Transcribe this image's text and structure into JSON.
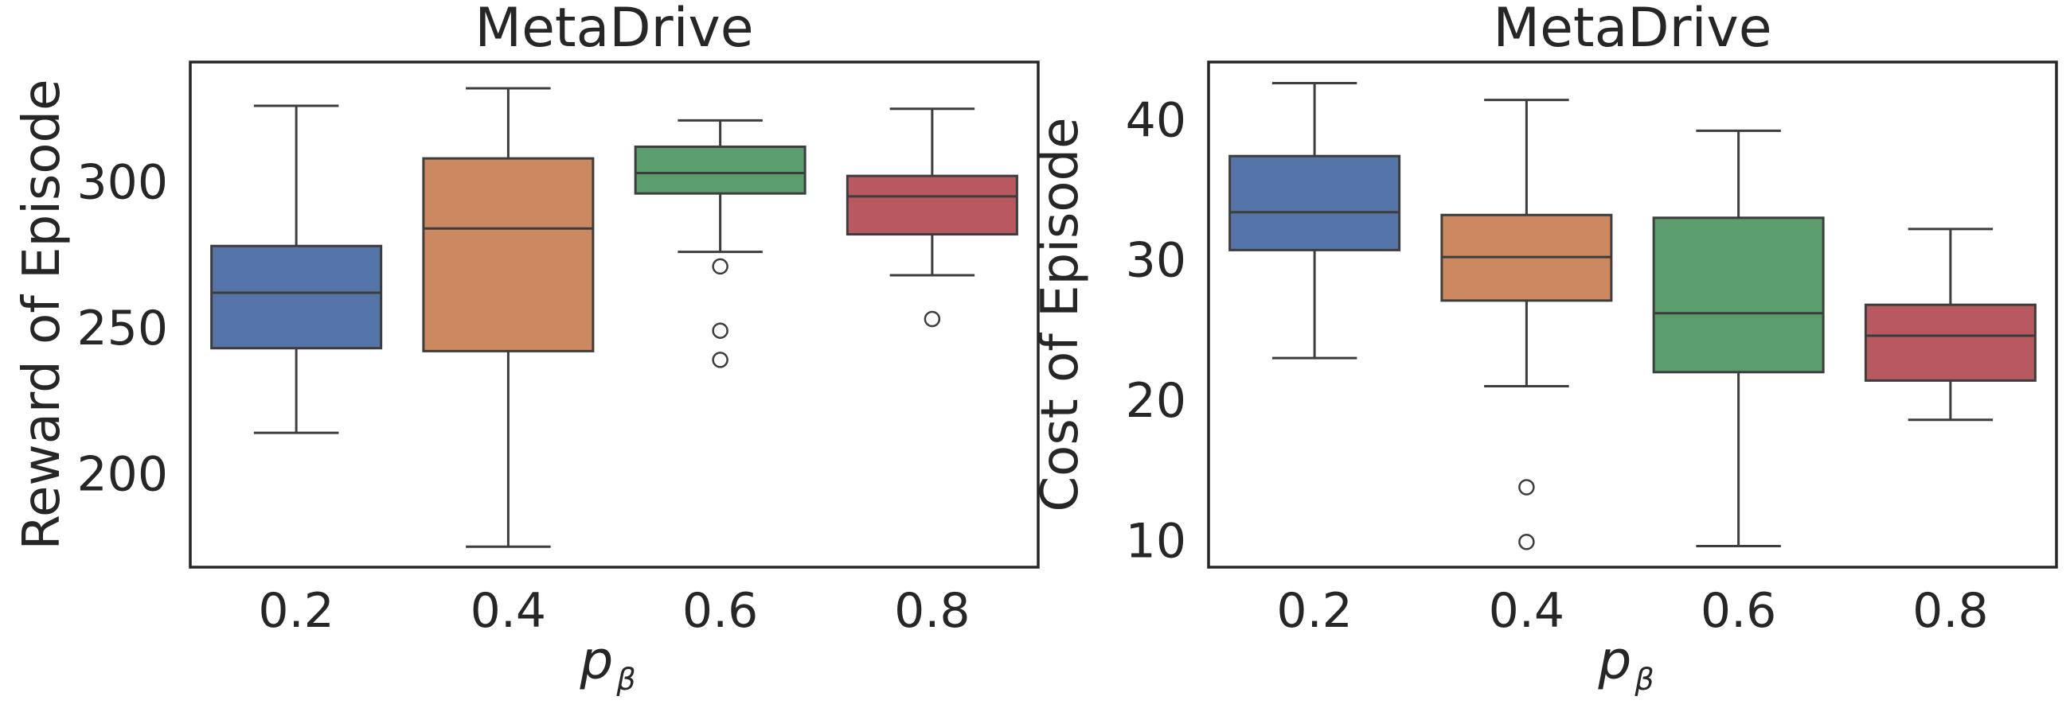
{
  "chart_data": [
    {
      "type": "box",
      "title": "MetaDrive",
      "ylabel": "Reward of Episode",
      "xlabel": {
        "main": "p",
        "subscript": "β"
      },
      "categories": [
        "0.2",
        "0.4",
        "0.6",
        "0.8"
      ],
      "ylim": [
        168,
        341
      ],
      "yticks": [
        200,
        250,
        300
      ],
      "grid": false,
      "boxes": [
        {
          "category": "0.2",
          "whislo": 214,
          "q1": 243,
          "median": 262,
          "q3": 278,
          "whishi": 326,
          "fliers": [],
          "color": "#5574a8"
        },
        {
          "category": "0.4",
          "whislo": 175,
          "q1": 242,
          "median": 284,
          "q3": 308,
          "whishi": 332,
          "fliers": [],
          "color": "#cc8960"
        },
        {
          "category": "0.6",
          "whislo": 276,
          "q1": 296,
          "median": 303,
          "q3": 312,
          "whishi": 321,
          "fliers": [
            271,
            249,
            239
          ],
          "color": "#5c9e6b"
        },
        {
          "category": "0.8",
          "whislo": 268,
          "q1": 282,
          "median": 295,
          "q3": 302,
          "whishi": 325,
          "fliers": [
            253
          ],
          "color": "#b8595f"
        }
      ]
    },
    {
      "type": "box",
      "title": "MetaDrive",
      "ylabel": "Cost of Episode",
      "xlabel": {
        "main": "p",
        "subscript": "β"
      },
      "categories": [
        "0.2",
        "0.4",
        "0.6",
        "0.8"
      ],
      "ylim": [
        8.1,
        44.1
      ],
      "yticks": [
        10,
        20,
        30,
        40
      ],
      "grid": false,
      "boxes": [
        {
          "category": "0.2",
          "whislo": 23.0,
          "q1": 30.7,
          "median": 33.4,
          "q3": 37.4,
          "whishi": 42.6,
          "fliers": [],
          "color": "#5574a8"
        },
        {
          "category": "0.4",
          "whislo": 21.0,
          "q1": 27.1,
          "median": 30.2,
          "q3": 33.2,
          "whishi": 41.4,
          "fliers": [
            13.8,
            9.9
          ],
          "color": "#cc8960"
        },
        {
          "category": "0.6",
          "whislo": 9.6,
          "q1": 22.0,
          "median": 26.2,
          "q3": 33.0,
          "whishi": 39.2,
          "fliers": [],
          "color": "#5c9e6b"
        },
        {
          "category": "0.8",
          "whislo": 18.6,
          "q1": 21.4,
          "median": 24.6,
          "q3": 26.8,
          "whishi": 32.2,
          "fliers": [],
          "color": "#b8595f"
        }
      ]
    }
  ]
}
